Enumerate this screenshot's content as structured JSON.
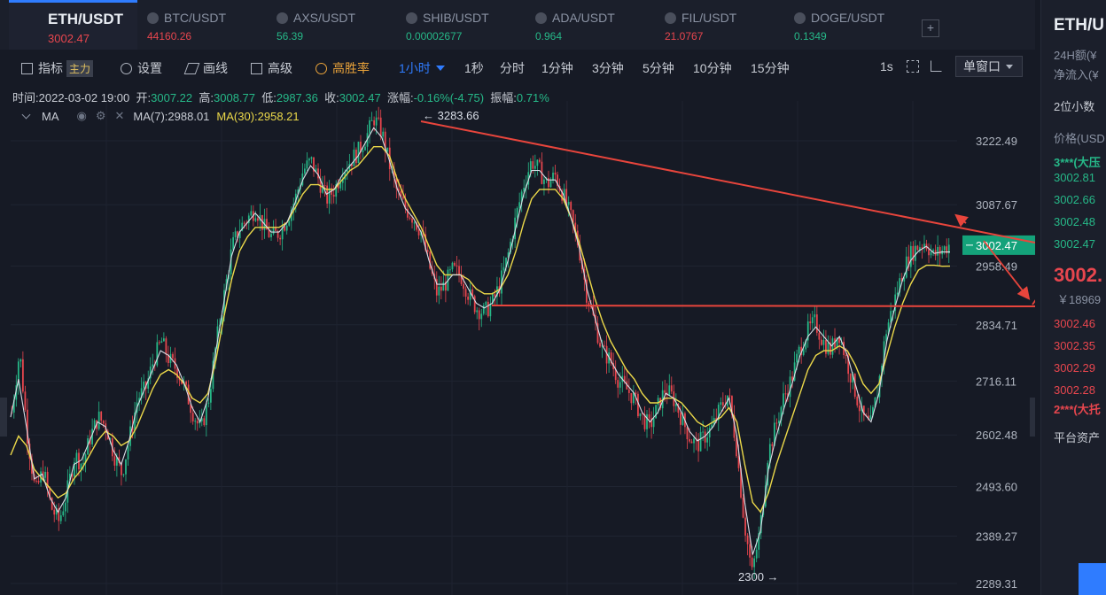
{
  "tabs": [
    {
      "symbol": "ETH/USDT",
      "price": "3002.47",
      "price_color": "#e8464e"
    },
    {
      "symbol": "BTC/USDT",
      "price": "44160.26",
      "price_color": "#e8464e"
    },
    {
      "symbol": "AXS/USDT",
      "price": "56.39",
      "price_color": "#26b888"
    },
    {
      "symbol": "SHIB/USDT",
      "price": "0.00002677",
      "price_color": "#26b888"
    },
    {
      "symbol": "ADA/USDT",
      "price": "0.964",
      "price_color": "#26b888"
    },
    {
      "symbol": "FIL/USDT",
      "price": "21.0767",
      "price_color": "#e8464e"
    },
    {
      "symbol": "DOGE/USDT",
      "price": "0.1349",
      "price_color": "#26b888"
    }
  ],
  "add_tab": "+",
  "toolbar": {
    "indicators": "指标",
    "main_badge": "主力",
    "settings": "设置",
    "draw": "画线",
    "advanced": "高级",
    "win_rate": "高胜率",
    "interval_selected": "1小时",
    "intervals": [
      "1秒",
      "分时",
      "1分钟",
      "3分钟",
      "5分钟",
      "10分钟",
      "15分钟"
    ],
    "speed": "1s",
    "window_mode": "单窗口"
  },
  "info": {
    "time_label": "时间:",
    "time": "2022-03-02 19:00",
    "open_label": "开:",
    "open": "3007.22",
    "high_label": "高:",
    "high": "3008.77",
    "low_label": "低:",
    "low": "2987.36",
    "close_label": "收:",
    "close": "3002.47",
    "change_label": "涨幅:",
    "change": "-0.16%(-4.75)",
    "amp_label": "振幅:",
    "amp": "0.71%"
  },
  "ma": {
    "name": "MA",
    "ma7": "MA(7):2988.01",
    "ma30": "MA(30):2958.21"
  },
  "chart_data": {
    "type": "candlestick",
    "y_ticks": [
      3222.49,
      3087.67,
      2958.49,
      2834.71,
      2716.11,
      2602.48,
      2493.6,
      2389.27,
      2289.31
    ],
    "current_price": "3002.47",
    "high_annotation": "3283.66",
    "low_annotation": "2300",
    "colors": {
      "up": "#26b888",
      "down": "#e8464e",
      "ma7": "#d8dde6",
      "ma30": "#ecd94a",
      "annotation": "#e8453c"
    },
    "closes": [
      2650,
      2780,
      2600,
      2480,
      2530,
      2450,
      2420,
      2480,
      2560,
      2540,
      2600,
      2640,
      2620,
      2560,
      2520,
      2600,
      2680,
      2700,
      2760,
      2800,
      2760,
      2740,
      2700,
      2650,
      2610,
      2680,
      2800,
      2900,
      3000,
      3040,
      3060,
      3080,
      3040,
      3020,
      3030,
      3060,
      3100,
      3160,
      3180,
      3140,
      3100,
      3120,
      3160,
      3180,
      3200,
      3230,
      3270,
      3240,
      3170,
      3110,
      3080,
      3060,
      3030,
      2960,
      2900,
      2920,
      2950,
      2940,
      2900,
      2870,
      2860,
      2880,
      2920,
      2980,
      3060,
      3130,
      3180,
      3160,
      3130,
      3150,
      3110,
      3060,
      3000,
      2900,
      2840,
      2780,
      2760,
      2720,
      2700,
      2680,
      2640,
      2620,
      2660,
      2700,
      2680,
      2640,
      2600,
      2580,
      2600,
      2620,
      2660,
      2690,
      2580,
      2420,
      2310,
      2400,
      2560,
      2620,
      2680,
      2720,
      2780,
      2820,
      2840,
      2800,
      2780,
      2820,
      2760,
      2700,
      2640,
      2620,
      2700,
      2820,
      2880,
      2940,
      2980,
      3000,
      3010,
      2980,
      2990,
      3002.47
    ],
    "ma7_closes": [
      2640,
      2720,
      2620,
      2510,
      2520,
      2470,
      2440,
      2470,
      2540,
      2550,
      2590,
      2630,
      2620,
      2570,
      2540,
      2590,
      2660,
      2700,
      2740,
      2780,
      2770,
      2750,
      2710,
      2660,
      2630,
      2680,
      2780,
      2880,
      2980,
      3030,
      3050,
      3070,
      3050,
      3030,
      3030,
      3050,
      3090,
      3140,
      3170,
      3150,
      3110,
      3120,
      3150,
      3170,
      3190,
      3220,
      3250,
      3230,
      3180,
      3120,
      3080,
      3060,
      3030,
      2970,
      2920,
      2920,
      2940,
      2940,
      2910,
      2880,
      2870,
      2880,
      2910,
      2970,
      3040,
      3110,
      3160,
      3160,
      3140,
      3140,
      3110,
      3060,
      3000,
      2910,
      2850,
      2790,
      2760,
      2730,
      2710,
      2690,
      2650,
      2630,
      2650,
      2690,
      2680,
      2650,
      2610,
      2590,
      2600,
      2620,
      2650,
      2680,
      2600,
      2460,
      2350,
      2400,
      2530,
      2600,
      2660,
      2710,
      2770,
      2810,
      2830,
      2810,
      2790,
      2810,
      2770,
      2710,
      2650,
      2630,
      2690,
      2800,
      2870,
      2930,
      2970,
      2990,
      3000,
      2985,
      2988,
      2988.01
    ],
    "ma30_closes": [
      2560,
      2600,
      2580,
      2530,
      2510,
      2490,
      2470,
      2480,
      2510,
      2530,
      2560,
      2590,
      2610,
      2600,
      2580,
      2590,
      2620,
      2660,
      2700,
      2730,
      2740,
      2730,
      2710,
      2680,
      2670,
      2690,
      2760,
      2850,
      2930,
      2990,
      3020,
      3040,
      3040,
      3040,
      3040,
      3050,
      3080,
      3110,
      3130,
      3130,
      3120,
      3120,
      3140,
      3160,
      3170,
      3190,
      3210,
      3210,
      3190,
      3140,
      3100,
      3070,
      3040,
      3000,
      2960,
      2940,
      2940,
      2940,
      2930,
      2910,
      2900,
      2900,
      2910,
      2940,
      2990,
      3050,
      3100,
      3120,
      3120,
      3120,
      3100,
      3060,
      3010,
      2950,
      2890,
      2840,
      2800,
      2770,
      2740,
      2720,
      2690,
      2670,
      2670,
      2680,
      2680,
      2670,
      2650,
      2630,
      2620,
      2630,
      2640,
      2660,
      2630,
      2540,
      2460,
      2440,
      2480,
      2540,
      2590,
      2640,
      2690,
      2740,
      2770,
      2780,
      2780,
      2790,
      2780,
      2750,
      2710,
      2690,
      2710,
      2770,
      2830,
      2880,
      2920,
      2950,
      2960,
      2960,
      2958,
      2958.21
    ]
  },
  "side": {
    "pair": "ETH/U",
    "vol_label": "24H额(¥",
    "inflow_label": "净流入(¥",
    "decimals": "2位小数",
    "price_label": "价格(USD",
    "big_ask": "3***(大压",
    "asks": [
      "3002.81",
      "3002.66",
      "3002.48",
      "3002.47"
    ],
    "last": "3002.",
    "last_cny": "￥18969",
    "bids": [
      "3002.46",
      "3002.35",
      "3002.29",
      "3002.28"
    ],
    "big_bid": "2***(大托",
    "assets": "平台资产"
  }
}
